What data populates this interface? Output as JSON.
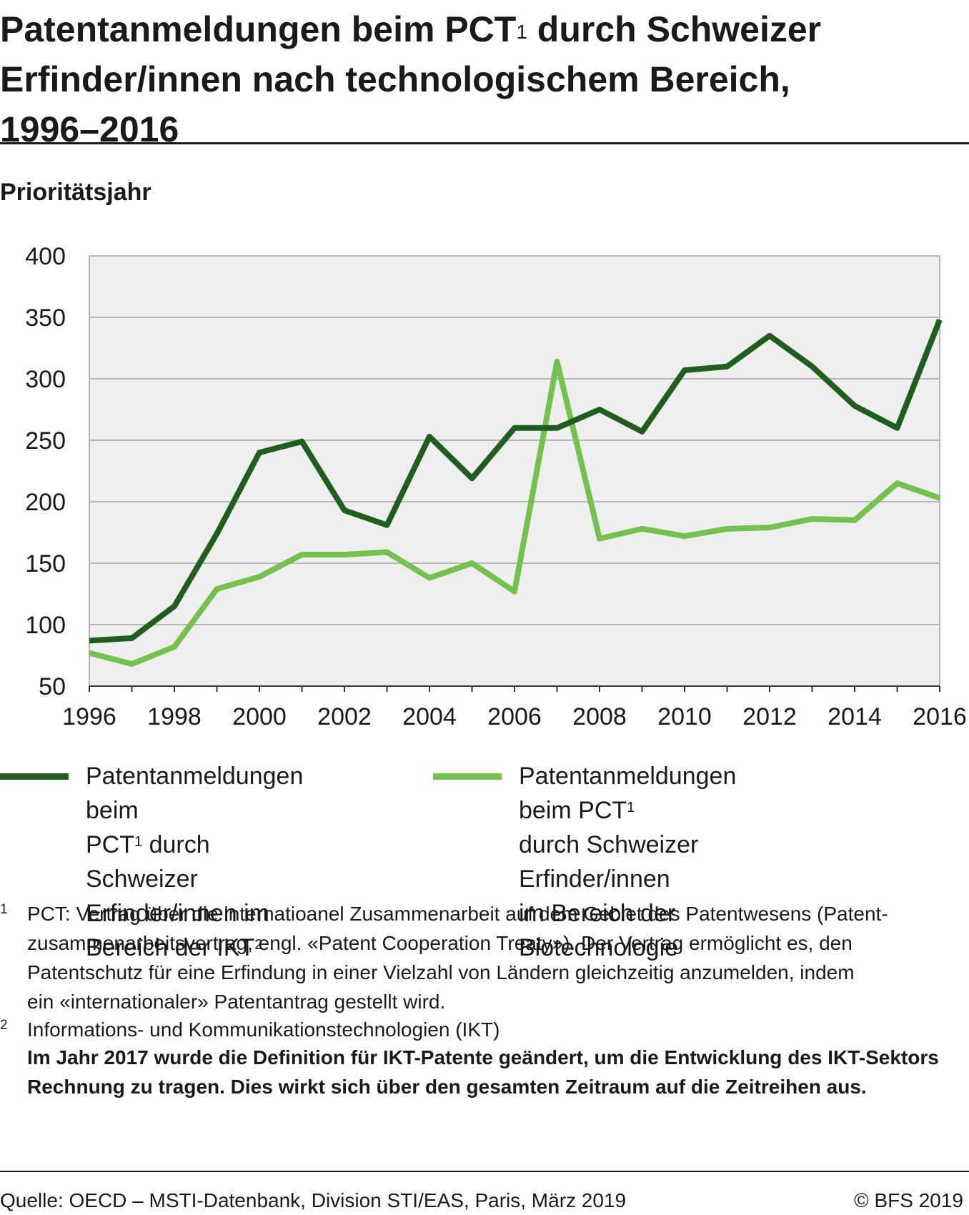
{
  "title": {
    "line1_a": "Patentanmeldungen beim PCT",
    "sup": "1",
    "line1_b": " durch Schweizer",
    "line2": "Erfinder/innen nach technologischem Bereich,",
    "line3": "1996–2016"
  },
  "unit_label": "Prioritätsjahr",
  "colors": {
    "ikt": "#1f5e1f",
    "bio": "#74c14f",
    "plot_bg": "#efefef",
    "grid": "#b8b8b8",
    "frame": "#a0a0a0"
  },
  "legend": {
    "ikt": {
      "line1": "Patentanmeldungen beim",
      "line2_a": "PCT",
      "line2_sup": "1",
      "line2_b": " durch Schweizer",
      "line3_a": "Erfinder/innen im Bereich der IKT",
      "line3_sup": "2"
    },
    "bio": {
      "line1_a": "Patentanmeldungen beim PCT",
      "line1_sup": "1",
      "line2": "durch Schweizer Erfinder/innen",
      "line3": "im Bereich der Biotechnologie"
    }
  },
  "footnotes": {
    "fn1_mark": "1",
    "fn1_line1": "PCT: Vertrag über die internatioanel Zusammenarbeit auf dem Gebiet des Patentwesens (Patent-",
    "fn1_line2": "zusammenarbeitsvertrag, engl. «Patent Cooperation Treaty»). Der Vertrag ermöglicht es, den",
    "fn1_line3": "Patentschutz für eine Erfindung in einer Vielzahl von Ländern gleichzeitig anzumelden, indem",
    "fn1_line4": "ein «internationaler» Patentantrag gestellt wird.",
    "fn2_mark": "2",
    "fn2_text": "Informations- und Kommunikationstechnologien (IKT)",
    "note": "Im Jahr 2017 wurde die Definition für IKT-Patente geändert, um die Entwicklung des IKT-Sektors Rechnung zu tragen. Dies wirkt sich über den gesamten Zeitraum auf die Zeitreihen aus."
  },
  "source": "Quelle: OECD – MSTI-Datenbank, Division STI/EAS, Paris, März 2019",
  "copyright": "© BFS 2019",
  "chart_data": {
    "type": "line",
    "x": [
      1996,
      1997,
      1998,
      1999,
      2000,
      2001,
      2002,
      2003,
      2004,
      2005,
      2006,
      2007,
      2008,
      2009,
      2010,
      2011,
      2012,
      2013,
      2014,
      2015,
      2016
    ],
    "xlim": [
      1996,
      2016
    ],
    "xticks": [
      1996,
      1998,
      2000,
      2002,
      2004,
      2006,
      2008,
      2010,
      2012,
      2014,
      2016
    ],
    "ylim": [
      50,
      400
    ],
    "yticks": [
      50,
      100,
      150,
      200,
      250,
      300,
      350,
      400
    ],
    "grid": "horizontal",
    "legend_position": "bottom",
    "series": [
      {
        "key": "ikt",
        "values": [
          87,
          89,
          115,
          174,
          240,
          249,
          193,
          181,
          253,
          219,
          260,
          260,
          275,
          257,
          307,
          310,
          335,
          310,
          278,
          260,
          348
        ]
      },
      {
        "key": "bio",
        "values": [
          77,
          68,
          82,
          129,
          139,
          157,
          157,
          159,
          138,
          150,
          127,
          314,
          170,
          178,
          172,
          178,
          179,
          186,
          185,
          215,
          203
        ]
      }
    ]
  }
}
